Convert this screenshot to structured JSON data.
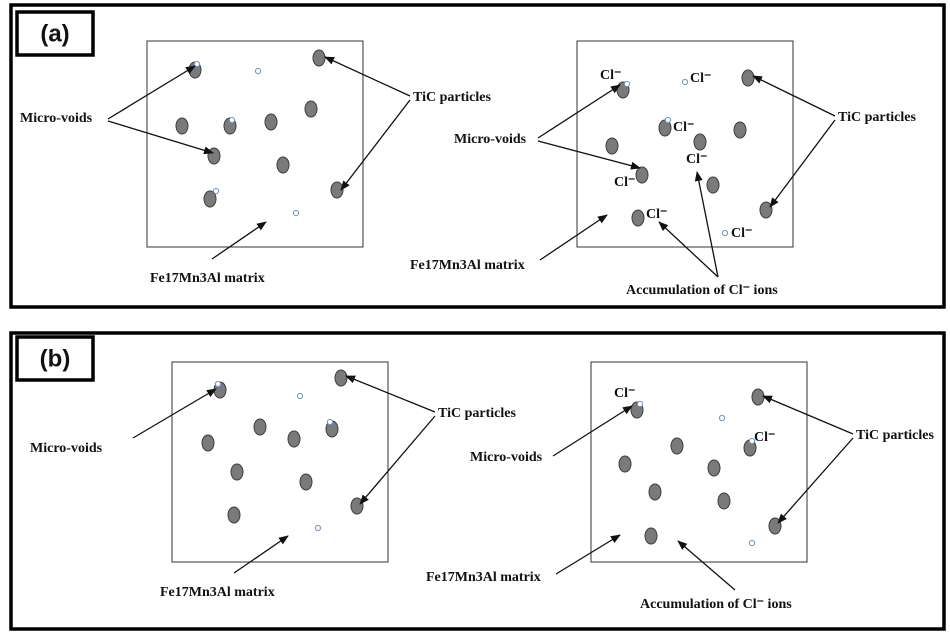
{
  "panels": [
    {
      "label": "(a)",
      "left": {
        "micro_voids": "Micro-voids",
        "tic_particles": "TiC particles",
        "matrix": "Fe17Mn3Al matrix"
      },
      "right": {
        "cl_ions": [
          "Cl⁻",
          "Cl⁻",
          "Cl⁻",
          "Cl⁻",
          "Cl⁻",
          "Cl⁻",
          "Cl⁻"
        ],
        "micro_voids": "Micro-voids",
        "tic_particles": "TiC particles",
        "matrix": "Fe17Mn3Al matrix",
        "accumulation": "Accumulation of Cl⁻ ions"
      }
    },
    {
      "label": "(b)",
      "left": {
        "micro_voids": "Micro-voids",
        "tic_particles": "TiC particles",
        "matrix": "Fe17Mn3Al matrix"
      },
      "right": {
        "cl_ions": [
          "Cl⁻",
          "Cl⁻"
        ],
        "micro_voids": "Micro-voids",
        "tic_particles": "TiC particles",
        "matrix": "Fe17Mn3Al matrix",
        "accumulation": "Accumulation of Cl⁻ ions"
      }
    }
  ]
}
